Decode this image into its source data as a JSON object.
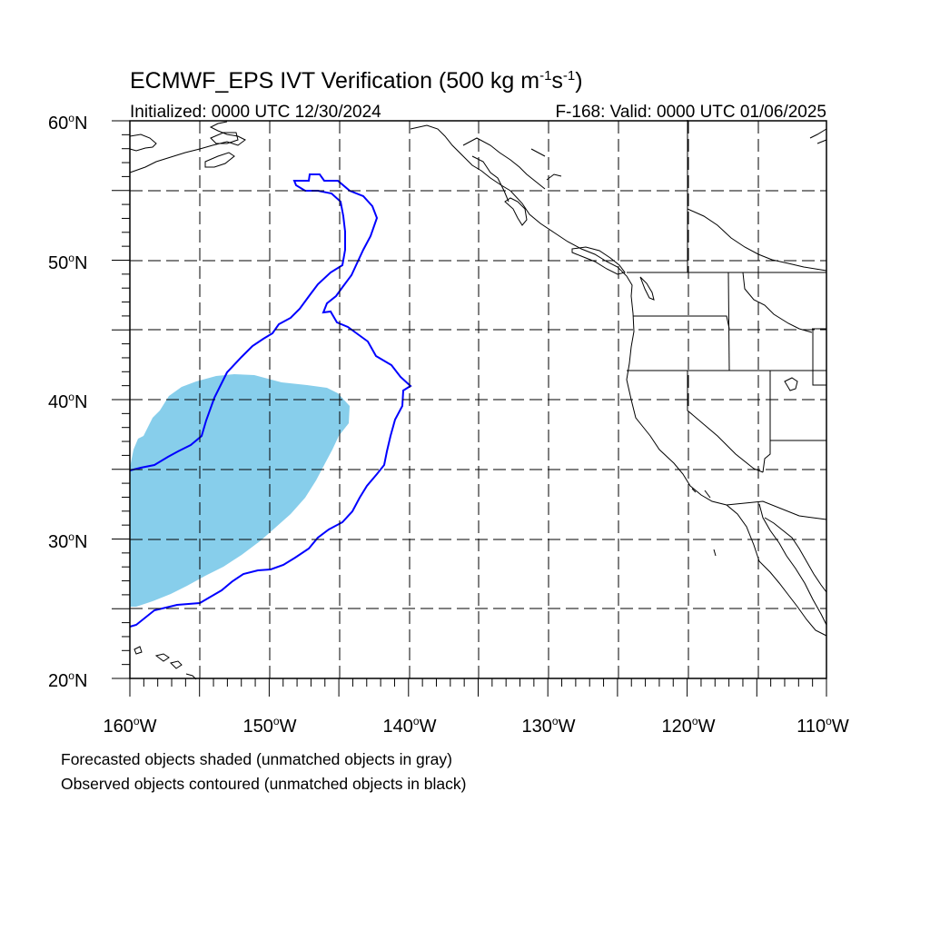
{
  "map": {
    "title": "ECMWF_EPS IVT Verification (500 kg m",
    "title_exp1": "-1",
    "title_mid": "s",
    "title_exp2": "-1",
    "title_end": ")",
    "subtitle_left": "Initialized: 0000 UTC 12/30/2024",
    "subtitle_right": "F-168: Valid: 0000 UTC 01/06/2025",
    "lat_labels": [
      "60",
      "50",
      "40",
      "30",
      "20"
    ],
    "lat_suffix": "N",
    "lon_labels": [
      "160",
      "150",
      "140",
      "130",
      "120",
      "110"
    ],
    "lon_suffix": "W",
    "footnote_1": "Forecasted objects shaded (unmatched objects in gray)",
    "footnote_2": "Observed objects contoured (unmatched objects in black)",
    "colors": {
      "forecast_fill": "#87CEEB",
      "observed_contour": "#0000FF",
      "coastline": "#000000",
      "grid": "#000000"
    }
  }
}
